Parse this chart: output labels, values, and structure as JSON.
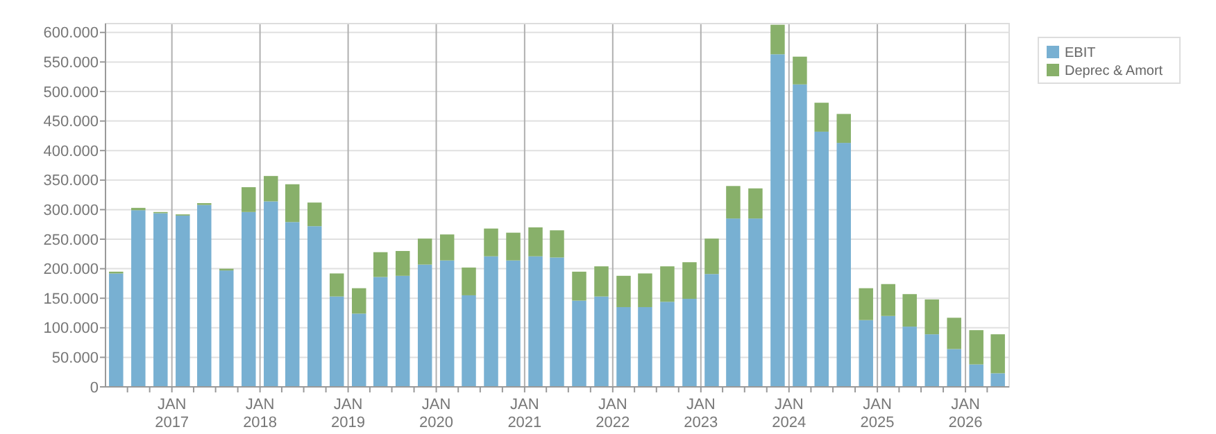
{
  "chart_data": {
    "type": "bar",
    "stacked": true,
    "grid": true,
    "legend": "top right",
    "x": [
      "2016-05-15",
      "2016-08-15",
      "2016-11-15",
      "2017-02-15",
      "2017-05-15",
      "2017-08-15",
      "2017-11-15",
      "2018-02-15",
      "2018-05-15",
      "2018-08-15",
      "2018-11-15",
      "2019-02-15",
      "2019-05-15",
      "2019-08-15",
      "2019-11-15",
      "2020-02-15",
      "2020-05-15",
      "2020-08-15",
      "2020-11-15",
      "2021-02-15",
      "2021-05-15",
      "2021-08-15",
      "2021-11-15",
      "2022-02-15",
      "2022-05-15",
      "2022-08-15",
      "2022-11-15",
      "2023-02-15",
      "2023-05-15",
      "2023-08-15",
      "2023-11-15",
      "2024-02-15",
      "2024-05-15",
      "2024-08-15",
      "2024-11-15",
      "2025-02-15",
      "2025-05-15",
      "2025-08-15",
      "2025-11-15",
      "2026-02-15",
      "2026-05-15"
    ],
    "series": [
      {
        "name": "EBIT",
        "color": "#78b0d2",
        "values": [
          192000,
          299000,
          294000,
          290000,
          308000,
          197000,
          296000,
          314000,
          279000,
          272000,
          153000,
          124000,
          186000,
          188000,
          207000,
          214000,
          155000,
          221000,
          214000,
          221000,
          219000,
          146000,
          153000,
          135000,
          135000,
          144000,
          149000,
          191000,
          285000,
          285000,
          563000,
          512000,
          432000,
          413000,
          113000,
          120000,
          102000,
          89000,
          64000,
          38000,
          23000
        ]
      },
      {
        "name": "Deprec & Amort",
        "color": "#88b06a",
        "values": [
          3000,
          4000,
          2000,
          2000,
          3000,
          3000,
          42000,
          43000,
          64000,
          40000,
          39000,
          43000,
          42000,
          42000,
          44000,
          44000,
          47000,
          47000,
          47000,
          49000,
          46000,
          49000,
          51000,
          53000,
          57000,
          60000,
          62000,
          60000,
          55000,
          51000,
          50000,
          47000,
          49000,
          49000,
          54000,
          54000,
          55000,
          59000,
          53000,
          58000,
          66000
        ]
      }
    ],
    "xlim": [
      "2016-04-01",
      "2026-07-01"
    ],
    "xticks": [
      {
        "value": "2016-07-01",
        "label": null
      },
      {
        "value": "2016-10-01",
        "label": null
      },
      {
        "value": "2017-01-01",
        "label": "JAN 2017"
      },
      {
        "value": "2017-04-01",
        "label": null
      },
      {
        "value": "2017-07-01",
        "label": null
      },
      {
        "value": "2017-10-01",
        "label": null
      },
      {
        "value": "2018-01-01",
        "label": "JAN 2018"
      },
      {
        "value": "2018-04-01",
        "label": null
      },
      {
        "value": "2018-07-01",
        "label": null
      },
      {
        "value": "2018-10-01",
        "label": null
      },
      {
        "value": "2019-01-01",
        "label": "JAN 2019"
      },
      {
        "value": "2019-04-01",
        "label": null
      },
      {
        "value": "2019-07-01",
        "label": null
      },
      {
        "value": "2019-10-01",
        "label": null
      },
      {
        "value": "2020-01-01",
        "label": "JAN 2020"
      },
      {
        "value": "2020-04-01",
        "label": null
      },
      {
        "value": "2020-07-01",
        "label": null
      },
      {
        "value": "2020-10-01",
        "label": null
      },
      {
        "value": "2021-01-01",
        "label": "JAN 2021"
      },
      {
        "value": "2021-04-01",
        "label": null
      },
      {
        "value": "2021-07-01",
        "label": null
      },
      {
        "value": "2021-10-01",
        "label": null
      },
      {
        "value": "2022-01-01",
        "label": "JAN 2022"
      },
      {
        "value": "2022-04-01",
        "label": null
      },
      {
        "value": "2022-07-01",
        "label": null
      },
      {
        "value": "2022-10-01",
        "label": null
      },
      {
        "value": "2023-01-01",
        "label": "JAN 2023"
      },
      {
        "value": "2023-04-01",
        "label": null
      },
      {
        "value": "2023-07-01",
        "label": null
      },
      {
        "value": "2023-10-01",
        "label": null
      },
      {
        "value": "2024-01-01",
        "label": "JAN 2024"
      },
      {
        "value": "2024-04-01",
        "label": null
      },
      {
        "value": "2024-07-01",
        "label": null
      },
      {
        "value": "2024-10-01",
        "label": null
      },
      {
        "value": "2025-01-01",
        "label": "JAN 2025"
      },
      {
        "value": "2025-04-01",
        "label": null
      },
      {
        "value": "2025-07-01",
        "label": null
      },
      {
        "value": "2025-10-01",
        "label": null
      },
      {
        "value": "2026-01-01",
        "label": "JAN 2026"
      },
      {
        "value": "2026-04-01",
        "label": null
      }
    ],
    "ylim": [
      0,
      615000
    ],
    "yticks": [
      {
        "value": 0,
        "label": "0"
      },
      {
        "value": 50000,
        "label": "50.000"
      },
      {
        "value": 100000,
        "label": "100.000"
      },
      {
        "value": 150000,
        "label": "150.000"
      },
      {
        "value": 200000,
        "label": "200.000"
      },
      {
        "value": 250000,
        "label": "250.000"
      },
      {
        "value": 300000,
        "label": "300.000"
      },
      {
        "value": 350000,
        "label": "350.000"
      },
      {
        "value": 400000,
        "label": "400.000"
      },
      {
        "value": 450000,
        "label": "450.000"
      },
      {
        "value": 500000,
        "label": "500.000"
      },
      {
        "value": 550000,
        "label": "550.000"
      },
      {
        "value": 600000,
        "label": "600.000"
      }
    ]
  }
}
